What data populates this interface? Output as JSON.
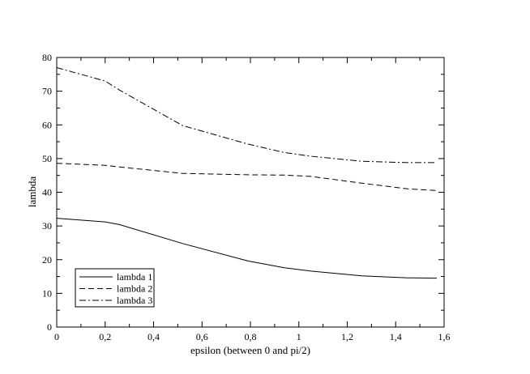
{
  "chart_data": {
    "type": "line",
    "xlabel": "epsilon (between 0 and pi/2)",
    "ylabel": "lambda",
    "xlim": [
      0,
      1.6
    ],
    "ylim": [
      0,
      80
    ],
    "x_ticks": [
      "0",
      "0,2",
      "0,4",
      "0,6",
      "0,8",
      "1",
      "1,2",
      "1,4",
      "1,6"
    ],
    "y_ticks": [
      "0",
      "10",
      "20",
      "30",
      "40",
      "50",
      "60",
      "70",
      "80"
    ],
    "grid": false,
    "legend_position": "bottom-left",
    "series": [
      {
        "name": "lambda 1",
        "line_style": "solid",
        "x": [
          0,
          0.2,
          0.26,
          0.52,
          0.79,
          0.94,
          1.05,
          1.26,
          1.45,
          1.57
        ],
        "y": [
          32.3,
          31.2,
          30.4,
          24.8,
          19.6,
          17.6,
          16.6,
          15.2,
          14.6,
          14.5
        ]
      },
      {
        "name": "lambda 2",
        "line_style": "dashed",
        "x": [
          0,
          0.2,
          0.26,
          0.52,
          0.79,
          0.94,
          1.05,
          1.26,
          1.45,
          1.57
        ],
        "y": [
          48.6,
          48.0,
          47.5,
          45.6,
          45.2,
          45.1,
          44.7,
          42.7,
          41.0,
          40.5
        ]
      },
      {
        "name": "lambda 3",
        "line_style": "dashdot",
        "x": [
          0,
          0.2,
          0.26,
          0.52,
          0.79,
          0.94,
          1.05,
          1.26,
          1.45,
          1.57
        ],
        "y": [
          77.0,
          73.0,
          70.3,
          59.8,
          54.3,
          51.8,
          50.7,
          49.2,
          48.8,
          48.8
        ]
      }
    ]
  }
}
